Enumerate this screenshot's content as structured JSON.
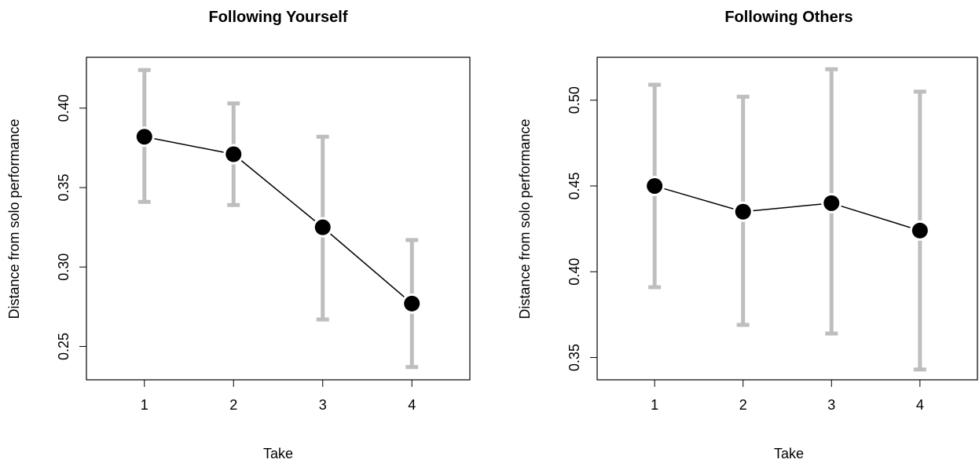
{
  "chart_data": [
    {
      "type": "line",
      "title": "Following Yourself",
      "xlabel": "Take",
      "ylabel": "Distance from solo performance",
      "x": [
        1,
        2,
        3,
        4
      ],
      "xticks": [
        "1",
        "2",
        "3",
        "4"
      ],
      "xlim": [
        0.35,
        4.65
      ],
      "ylim": [
        0.229,
        0.432
      ],
      "yticks": [
        "0.25",
        "0.30",
        "0.35",
        "0.40"
      ],
      "series": [
        {
          "values": [
            0.382,
            0.371,
            0.325,
            0.277
          ],
          "lower": [
            0.341,
            0.339,
            0.267,
            0.237
          ],
          "upper": [
            0.424,
            0.403,
            0.382,
            0.317
          ]
        }
      ],
      "colors": {
        "line": "#000000",
        "point": "#000000",
        "errorbar": "#bebebe"
      },
      "grid": false
    },
    {
      "type": "line",
      "title": "Following Others",
      "xlabel": "Take",
      "ylabel": "Distance from solo performance",
      "x": [
        1,
        2,
        3,
        4
      ],
      "xticks": [
        "1",
        "2",
        "3",
        "4"
      ],
      "xlim": [
        0.35,
        4.65
      ],
      "ylim": [
        0.337,
        0.525
      ],
      "yticks": [
        "0.35",
        "0.40",
        "0.45",
        "0.50"
      ],
      "series": [
        {
          "values": [
            0.45,
            0.435,
            0.44,
            0.424
          ],
          "lower": [
            0.391,
            0.369,
            0.364,
            0.343
          ],
          "upper": [
            0.509,
            0.502,
            0.518,
            0.505
          ]
        }
      ],
      "colors": {
        "line": "#000000",
        "point": "#000000",
        "errorbar": "#bebebe"
      },
      "grid": false
    }
  ]
}
